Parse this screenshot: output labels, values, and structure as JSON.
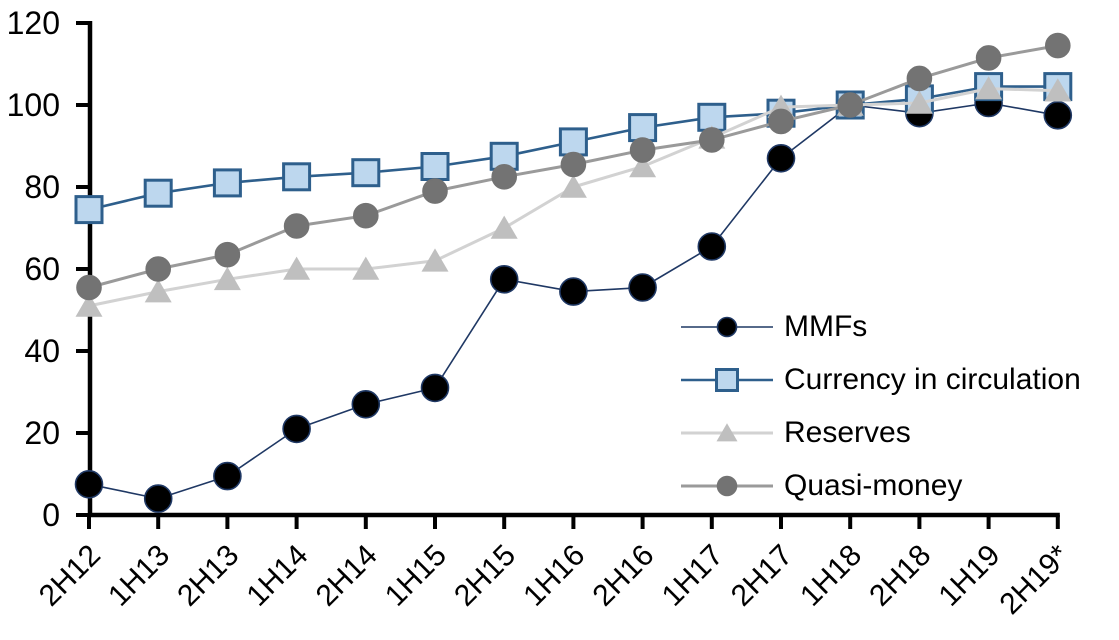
{
  "chart_data": {
    "type": "line",
    "title": "",
    "xlabel": "",
    "ylabel": "",
    "ylim": [
      0,
      120
    ],
    "y_ticks": [
      0,
      20,
      40,
      60,
      80,
      100,
      120
    ],
    "grid": false,
    "legend_position": "inside-right",
    "axis_color": "#000000",
    "categories": [
      "2H12",
      "1H13",
      "2H13",
      "1H14",
      "2H14",
      "1H15",
      "2H15",
      "1H16",
      "2H16",
      "1H17",
      "2H17",
      "1H18",
      "2H18",
      "1H19",
      "2H19*"
    ],
    "series": [
      {
        "name": "MMFs",
        "marker": "circle",
        "marker_color": "#000000",
        "marker_border": "#1f3864",
        "line_color": "#1f3864",
        "line_width": 1.6,
        "marker_size": 27,
        "legend_marker_size": 19,
        "values": [
          7.5,
          4,
          9.5,
          21,
          27,
          31,
          57.5,
          54.5,
          55.5,
          65.5,
          87,
          100,
          98,
          100.5,
          97.5
        ]
      },
      {
        "name": "Currency in circulation",
        "marker": "square",
        "marker_color": "#bdd7ee",
        "marker_border": "#2e5f8c",
        "line_color": "#2e5f8c",
        "line_width": 2.6,
        "marker_size": 26,
        "legend_marker_size": 21,
        "values": [
          74.5,
          78.5,
          81,
          82.5,
          83.5,
          85,
          87.5,
          91,
          94.5,
          97,
          98,
          100,
          101.5,
          104.5,
          104.5
        ]
      },
      {
        "name": "Reserves",
        "marker": "triangle",
        "marker_color": "#bfbfbf",
        "marker_border": "#bfbfbf",
        "line_color": "#d2d2d2",
        "line_width": 3,
        "marker_size": 27,
        "legend_marker_size": 21,
        "values": [
          51,
          54.5,
          57.5,
          60,
          60,
          62,
          70,
          80,
          85,
          92,
          99.5,
          100,
          100.5,
          104,
          103.5
        ]
      },
      {
        "name": "Quasi-money",
        "marker": "circle",
        "marker_color": "#737373",
        "marker_border": "#737373",
        "line_color": "#9a9a9a",
        "line_width": 3,
        "marker_size": 24,
        "legend_marker_size": 19,
        "values": [
          55.5,
          60,
          63.5,
          70.5,
          73,
          79,
          82.5,
          85.5,
          89,
          91.5,
          96,
          100,
          106.5,
          111.5,
          114.5
        ]
      }
    ]
  }
}
